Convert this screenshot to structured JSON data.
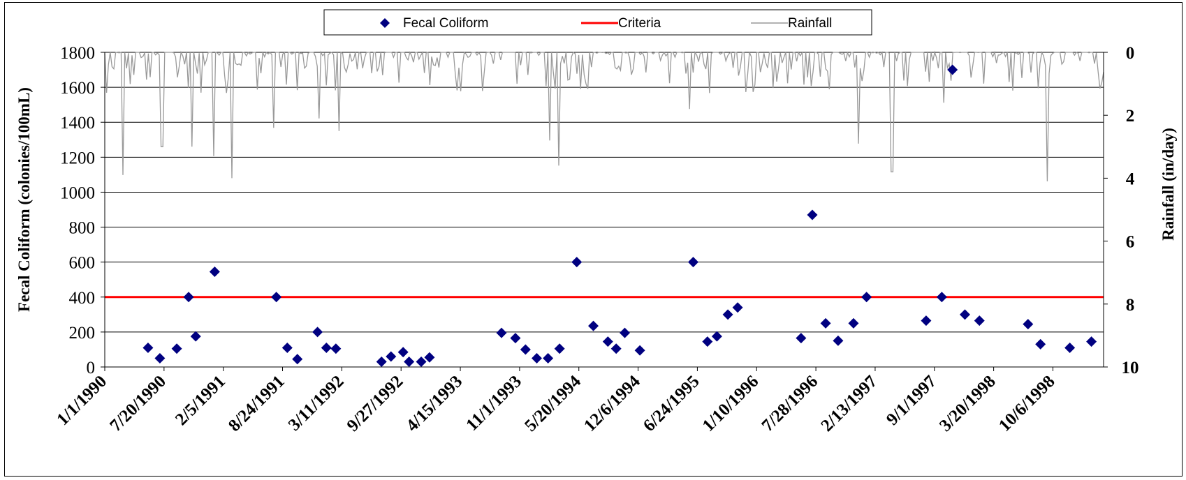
{
  "chart_data": {
    "type": "scatter",
    "title": "",
    "ylabel": "Fecal Coliform (colonies/100mL)",
    "y2label": "Rainfall (in/day)",
    "ylim": [
      0,
      1800
    ],
    "y2lim": [
      0,
      10
    ],
    "y2_inverted": true,
    "y_ticks": [
      "0",
      "200",
      "400",
      "600",
      "800",
      "1000",
      "1200",
      "1400",
      "1600",
      "1800"
    ],
    "y2_ticks": [
      "0",
      "2",
      "4",
      "6",
      "8",
      "10"
    ],
    "x_ticks": [
      "1/1/1990",
      "7/20/1990",
      "2/5/1991",
      "8/24/1991",
      "3/11/1992",
      "9/27/1992",
      "4/15/1993",
      "11/1/1993",
      "5/20/1994",
      "12/6/1994",
      "6/24/1995",
      "1/10/1996",
      "7/28/1996",
      "2/13/1997",
      "9/1/1997",
      "3/20/1998",
      "10/6/1998"
    ],
    "xlim": [
      "1/1/1990",
      "3/26/1999"
    ],
    "grid": "horizontal",
    "legend_position": "top",
    "series": [
      {
        "name": "Fecal Coliform",
        "type": "scatter",
        "color": "#000080",
        "marker": "diamond",
        "points": [
          [
            "5/27/1990",
            110
          ],
          [
            "7/6/1990",
            50
          ],
          [
            "9/1/1990",
            105
          ],
          [
            "10/11/1990",
            400
          ],
          [
            "11/4/1990",
            175
          ],
          [
            "1/7/1991",
            545
          ],
          [
            "8/3/1991",
            400
          ],
          [
            "9/9/1991",
            110
          ],
          [
            "10/13/1991",
            45
          ],
          [
            "12/20/1991",
            200
          ],
          [
            "1/19/1992",
            110
          ],
          [
            "2/20/1992",
            105
          ],
          [
            "7/23/1992",
            30
          ],
          [
            "8/24/1992",
            60
          ],
          [
            "10/4/1992",
            85
          ],
          [
            "10/24/1992",
            30
          ],
          [
            "12/4/1992",
            30
          ],
          [
            "1/1/1993",
            55
          ],
          [
            "9/1/1993",
            195
          ],
          [
            "10/18/1993",
            165
          ],
          [
            "11/21/1993",
            100
          ],
          [
            "12/29/1993",
            50
          ],
          [
            "2/5/1994",
            50
          ],
          [
            "3/16/1994",
            105
          ],
          [
            "5/13/1994",
            600
          ],
          [
            "7/8/1994",
            235
          ],
          [
            "8/26/1994",
            145
          ],
          [
            "9/23/1994",
            105
          ],
          [
            "10/22/1994",
            195
          ],
          [
            "12/12/1994",
            95
          ],
          [
            "6/10/1995",
            600
          ],
          [
            "7/28/1995",
            145
          ],
          [
            "8/29/1995",
            175
          ],
          [
            "10/5/1995",
            300
          ],
          [
            "11/7/1995",
            340
          ],
          [
            "6/8/1996",
            165
          ],
          [
            "7/16/1996",
            870
          ],
          [
            "8/30/1996",
            250
          ],
          [
            "10/11/1996",
            150
          ],
          [
            "12/2/1996",
            250
          ],
          [
            "1/15/1997",
            400
          ],
          [
            "8/4/1997",
            265
          ],
          [
            "9/26/1997",
            400
          ],
          [
            "11/1/1997",
            1700
          ],
          [
            "12/13/1997",
            300
          ],
          [
            "1/31/1998",
            265
          ],
          [
            "7/14/1998",
            245
          ],
          [
            "8/25/1998",
            130
          ],
          [
            "12/2/1998",
            110
          ],
          [
            "2/13/1999",
            145
          ]
        ]
      },
      {
        "name": "Criteria",
        "type": "line",
        "color": "#ff0000",
        "value": 400
      },
      {
        "name": "Rainfall",
        "type": "line",
        "axis": "right",
        "color": "#999999",
        "notable_spikes": [
          [
            "3/3/1990",
            3.9
          ],
          [
            "7/13/1990",
            3.0
          ],
          [
            "10/21/1990",
            3.0
          ],
          [
            "1/1/1991",
            3.3
          ],
          [
            "3/8/1991",
            4.0
          ],
          [
            "7/24/1991",
            2.4
          ],
          [
            "12/26/1991",
            2.1
          ],
          [
            "3/4/1992",
            2.5
          ],
          [
            "2/8/1994",
            2.8
          ],
          [
            "3/12/1994",
            3.6
          ],
          [
            "5/26/1995",
            1.8
          ],
          [
            "12/17/1996",
            2.9
          ],
          [
            "4/11/1997",
            3.8
          ],
          [
            "10/4/1997",
            1.6
          ],
          [
            "9/18/1998",
            4.1
          ]
        ]
      }
    ]
  }
}
